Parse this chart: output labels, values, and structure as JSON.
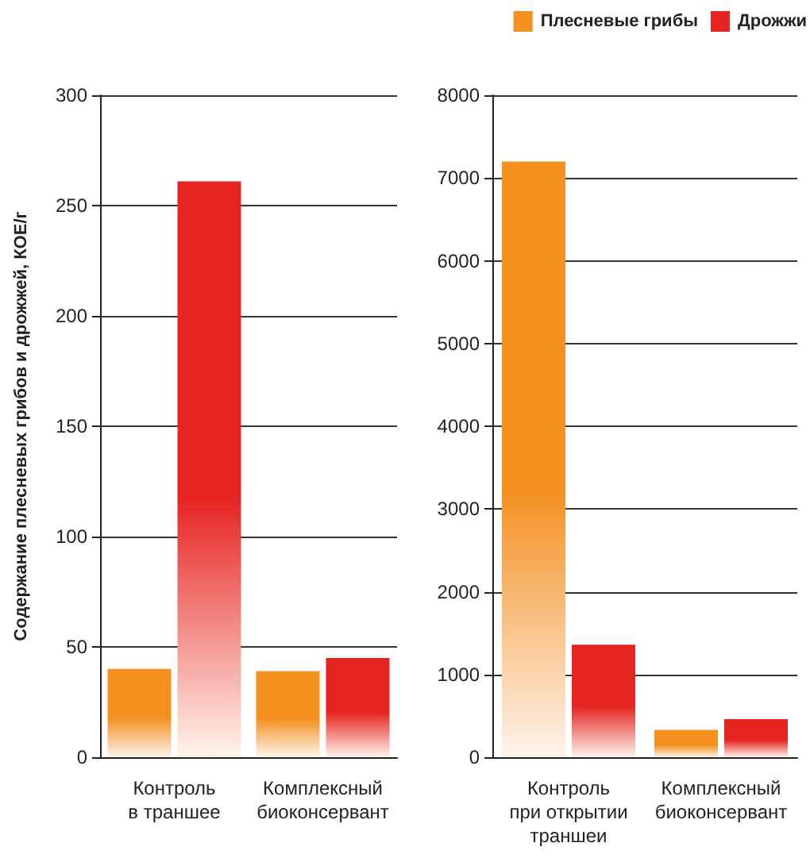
{
  "chart_data": [
    {
      "type": "bar",
      "ylabel": "Содержание плесневых грибов и дрожжей, КОЕ/г",
      "categories": [
        "Контроль\nв траншее",
        "Комплексный\nбиоконсервант"
      ],
      "series": [
        {
          "color": "#f39020",
          "values": [
            40,
            39
          ]
        },
        {
          "color": "#e52421",
          "values": [
            261,
            45
          ]
        }
      ],
      "ylim": [
        0,
        300
      ],
      "yticks": [
        0,
        50,
        100,
        150,
        200,
        250,
        300
      ],
      "grid": "y"
    },
    {
      "type": "bar",
      "categories": [
        "Контроль\nпри открытии\nтраншеи",
        "Комплексный\nбиоконсервант"
      ],
      "series": [
        {
          "name": "Плесневые грибы",
          "color": "#f39020",
          "values": [
            7200,
            330
          ]
        },
        {
          "name": "Дрожжи",
          "color": "#e52421",
          "values": [
            1360,
            460
          ]
        }
      ],
      "ylim": [
        0,
        8000
      ],
      "yticks": [
        0,
        1000,
        2000,
        3000,
        4000,
        5000,
        6000,
        7000,
        8000
      ],
      "grid": "y",
      "legend": "top right"
    }
  ]
}
